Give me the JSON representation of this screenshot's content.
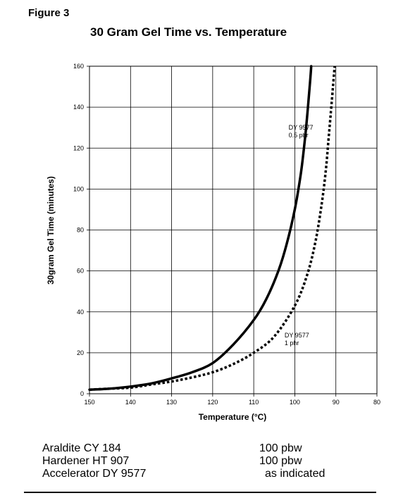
{
  "figure_label": "Figure 3",
  "chart_data": {
    "type": "line",
    "title": "30 Gram Gel Time vs. Temperature",
    "xlabel": "Temperature (°C)",
    "ylabel": "30gram Gel Time (minutes)",
    "xlim": [
      150,
      80
    ],
    "ylim": [
      0,
      160
    ],
    "x_ticks": [
      150,
      140,
      130,
      120,
      110,
      100,
      90,
      80
    ],
    "y_ticks": [
      0,
      20,
      40,
      60,
      80,
      100,
      120,
      140,
      160
    ],
    "grid": true,
    "series": [
      {
        "name": "DY 9577 0.5 phr",
        "label_lines": [
          "DY 9577",
          "0.5 phr"
        ],
        "style": "solid",
        "x": [
          150,
          145,
          140,
          135,
          130,
          125,
          120,
          115,
          110,
          107,
          104,
          102,
          100,
          98.5,
          97.5,
          96.8,
          96.3,
          96
        ],
        "y": [
          2,
          2.5,
          3.5,
          5,
          7.5,
          10.5,
          15,
          24,
          36,
          46,
          60,
          73,
          90,
          108,
          125,
          140,
          152,
          160
        ]
      },
      {
        "name": "DY 9577 1 phr",
        "label_lines": [
          "DY 9577",
          "1 phr"
        ],
        "style": "dotted",
        "x": [
          150,
          145,
          140,
          135,
          130,
          125,
          120,
          115,
          110,
          105,
          100,
          97,
          95,
          93.5,
          92.5,
          91.8,
          91.2,
          90.7,
          90.3
        ],
        "y": [
          2,
          2.5,
          3,
          4.5,
          6,
          8,
          10.5,
          14.5,
          20,
          28,
          43,
          58,
          74,
          92,
          108,
          124,
          138,
          150,
          160
        ]
      }
    ],
    "colors": {
      "line": "#000000",
      "grid": "#000000",
      "background": "#ffffff"
    }
  },
  "formulation": [
    {
      "name": "Araldite CY 184",
      "value": "100 pbw"
    },
    {
      "name": "Hardener HT 907",
      "value": "100 pbw"
    },
    {
      "name": "Accelerator DY 9577",
      "value": "as indicated"
    }
  ]
}
